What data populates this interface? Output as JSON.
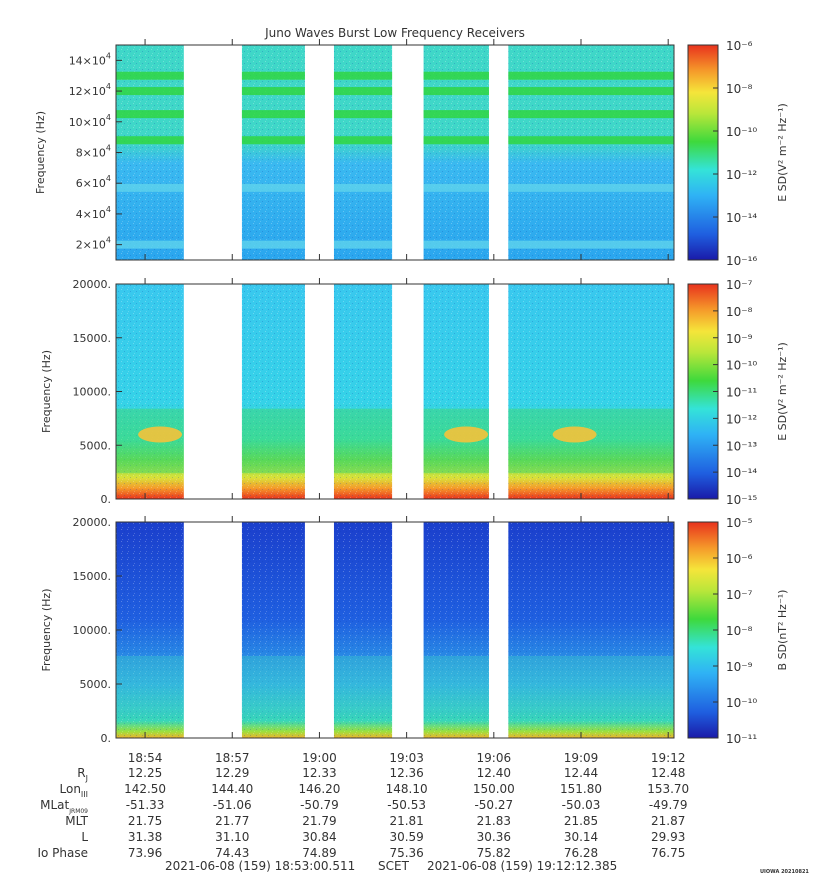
{
  "title": "Juno Waves Burst Low Frequency Receivers",
  "footer": {
    "start": "2021-06-08 (159) 18:53:00.511",
    "scet": "SCET",
    "end": "2021-06-08 (159) 19:12:12.385",
    "credit": "UIOWA 20210821"
  },
  "colors": {
    "background_low_e": "#3db7f0",
    "background_b": "#1f52d8",
    "colormap": [
      "#1a1aa8",
      "#1f5fe0",
      "#2fb2f5",
      "#34e3d8",
      "#39e27a",
      "#3ed93c",
      "#b8e63a",
      "#f5e53a",
      "#f59a2a",
      "#e8321d"
    ]
  },
  "chart_data": [
    {
      "type": "heatmap",
      "panel": "upper",
      "ylabel": "Frequency (Hz)",
      "y_ticks": [
        {
          "base": "2×10",
          "exp": "4",
          "value": 20000
        },
        {
          "base": "4×10",
          "exp": "4",
          "value": 40000
        },
        {
          "base": "6×10",
          "exp": "4",
          "value": 60000
        },
        {
          "base": "8×10",
          "exp": "4",
          "value": 80000
        },
        {
          "base": "10×10",
          "exp": "4",
          "value": 100000
        },
        {
          "base": "12×10",
          "exp": "4",
          "value": 120000
        },
        {
          "base": "14×10",
          "exp": "4",
          "value": 140000
        }
      ],
      "ylim": [
        10000,
        150000
      ],
      "colorbar_label": "E SD(V² m⁻² Hz⁻¹)",
      "colorbar_ticks": [
        "10⁻⁶",
        "10⁻⁸",
        "10⁻¹⁰",
        "10⁻¹²",
        "10⁻¹⁴",
        "10⁻¹⁶"
      ],
      "emission_bands_hz": [
        20000,
        57000,
        88000,
        105000,
        120000,
        130000
      ]
    },
    {
      "type": "heatmap",
      "panel": "middle",
      "ylabel": "Frequency (Hz)",
      "y_ticks": [
        "0.",
        "5000.",
        "10000.",
        "15000.",
        "20000."
      ],
      "ylim": [
        0,
        20000
      ],
      "colorbar_label": "E SD(V² m⁻² Hz⁻¹)",
      "colorbar_ticks": [
        "10⁻⁷",
        "10⁻⁸",
        "10⁻⁹",
        "10⁻¹⁰",
        "10⁻¹¹",
        "10⁻¹²",
        "10⁻¹³",
        "10⁻¹⁴",
        "10⁻¹⁵"
      ]
    },
    {
      "type": "heatmap",
      "panel": "lower",
      "ylabel": "Frequency (Hz)",
      "y_ticks": [
        "0.",
        "5000.",
        "10000.",
        "15000.",
        "20000."
      ],
      "ylim": [
        0,
        20000
      ],
      "colorbar_label": "B SD(nT² Hz⁻¹)",
      "colorbar_ticks": [
        "10⁻⁵",
        "10⁻⁶",
        "10⁻⁷",
        "10⁻⁸",
        "10⁻⁹",
        "10⁻¹⁰",
        "10⁻¹¹"
      ]
    }
  ],
  "time_axis": {
    "xlim": [
      "18:53:00",
      "19:12:12"
    ],
    "ticks": [
      "18:54",
      "18:57",
      "19:00",
      "19:03",
      "19:06",
      "19:09",
      "19:12"
    ],
    "data_segments": [
      [
        "18:53:00",
        "18:55:20"
      ],
      [
        "18:57:20",
        "18:59:30"
      ],
      [
        "19:00:30",
        "19:02:30"
      ],
      [
        "19:03:35",
        "19:05:50"
      ],
      [
        "19:06:30",
        "19:12:12"
      ]
    ]
  },
  "ephemeris": {
    "rows": [
      {
        "label": "R",
        "sub": "J",
        "values": [
          "12.25",
          "12.29",
          "12.33",
          "12.36",
          "12.40",
          "12.44",
          "12.48"
        ]
      },
      {
        "label": "Lon",
        "sub": "III",
        "values": [
          "142.50",
          "144.40",
          "146.20",
          "148.10",
          "150.00",
          "151.80",
          "153.70"
        ]
      },
      {
        "label": "MLat",
        "sub": "JRM09",
        "values": [
          "-51.33",
          "-51.06",
          "-50.79",
          "-50.53",
          "-50.27",
          "-50.03",
          "-49.79"
        ]
      },
      {
        "label": "MLT",
        "sub": "",
        "values": [
          "21.75",
          "21.77",
          "21.79",
          "21.81",
          "21.83",
          "21.85",
          "21.87"
        ]
      },
      {
        "label": "L",
        "sub": "",
        "values": [
          "31.38",
          "31.10",
          "30.84",
          "30.59",
          "30.36",
          "30.14",
          "29.93"
        ]
      },
      {
        "label": "Io Phase",
        "sub": "",
        "values": [
          "73.96",
          "74.43",
          "74.89",
          "75.36",
          "75.82",
          "76.28",
          "76.75"
        ]
      }
    ]
  }
}
